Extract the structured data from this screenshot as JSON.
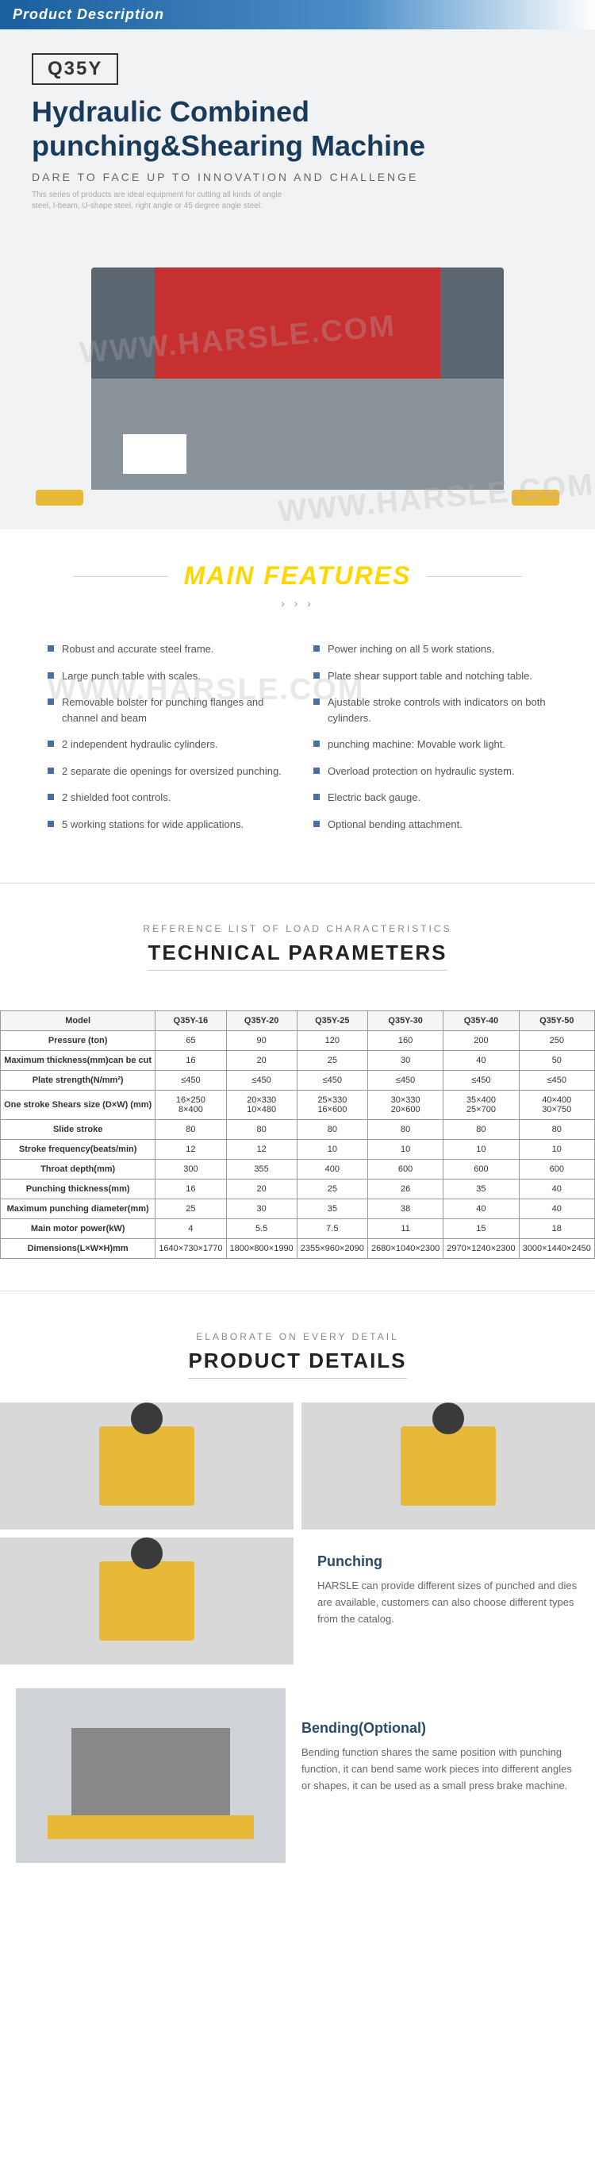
{
  "header": {
    "title": "Product Description"
  },
  "hero": {
    "model": "Q35Y",
    "title_line1": "Hydraulic Combined",
    "title_line2": "punching&Shearing Machine",
    "subtitle": "DARE TO FACE UP TO INNOVATION AND CHALLENGE",
    "desc": "This series of products are ideal equipment for cutting all kinds of angle steel, I-beam, U-shape steel, right angle or 45 degree angle steel."
  },
  "watermark": "WWW.HARSLE.COM",
  "features": {
    "title": "MAIN FEATURES",
    "arrows": "› › ›",
    "left": [
      "Robust and accurate steel frame.",
      "Large punch table with scales.",
      "Removable bolster for punching flanges and channel and beam",
      "2 independent hydraulic cylinders.",
      "2 separate die openings for oversized punching.",
      "2 shielded foot controls.",
      "5 working stations for wide applications."
    ],
    "right": [
      "Power inching on all 5 work stations.",
      "Plate shear support table and notching table.",
      "Ajustable stroke controls with indicators on both cylinders.",
      "punching machine: Movable work light.",
      "Overload protection on hydraulic system.",
      "Electric back gauge.",
      "Optional bending attachment."
    ]
  },
  "tech": {
    "sub": "REFERENCE LIST OF LOAD CHARACTERISTICS",
    "main": "TECHNICAL PARAMETERS",
    "columns": [
      "Model",
      "Q35Y-16",
      "Q35Y-20",
      "Q35Y-25",
      "Q35Y-30",
      "Q35Y-40",
      "Q35Y-50"
    ],
    "rows": [
      [
        "Pressure (ton)",
        "65",
        "90",
        "120",
        "160",
        "200",
        "250"
      ],
      [
        "Maximum thickness(mm)can be cut",
        "16",
        "20",
        "25",
        "30",
        "40",
        "50"
      ],
      [
        "Plate strength(N/mm²)",
        "≤450",
        "≤450",
        "≤450",
        "≤450",
        "≤450",
        "≤450"
      ],
      [
        "One stroke Shears size (D×W) (mm)",
        "16×250\n8×400",
        "20×330\n10×480",
        "25×330\n16×600",
        "30×330\n20×600",
        "35×400\n25×700",
        "40×400\n30×750"
      ],
      [
        "Slide stroke",
        "80",
        "80",
        "80",
        "80",
        "80",
        "80"
      ],
      [
        "Stroke frequency(beats/min)",
        "12",
        "12",
        "10",
        "10",
        "10",
        "10"
      ],
      [
        "Throat depth(mm)",
        "300",
        "355",
        "400",
        "600",
        "600",
        "600"
      ],
      [
        "Punching thickness(mm)",
        "16",
        "20",
        "25",
        "26",
        "35",
        "40"
      ],
      [
        "Maximum punching diameter(mm)",
        "25",
        "30",
        "35",
        "38",
        "40",
        "40"
      ],
      [
        "Main motor power(kW)",
        "4",
        "5.5",
        "7.5",
        "11",
        "15",
        "18"
      ],
      [
        "Dimensions(L×W×H)mm",
        "1640×730×1770",
        "1800×800×1990",
        "2355×960×2090",
        "2680×1040×2300",
        "2970×1240×2300",
        "3000×1440×2450"
      ]
    ]
  },
  "details": {
    "sub": "ELABORATE ON EVERY DETAIL",
    "main": "PRODUCT DETAILS",
    "punching": {
      "title": "Punching",
      "body": "HARSLE can provide different sizes of punched and dies are available, customers can also choose different types from the catalog."
    },
    "bending": {
      "title": "Bending(Optional)",
      "body": "Bending function shares the same position with punching function, it can bend same work pieces into different angles or shapes, it can be used as a small press brake machine."
    }
  },
  "colors": {
    "header_blue": "#1a5f9e",
    "title_navy": "#1a3a5a",
    "yellow": "#ffd700",
    "bullet_blue": "#4a6fa5",
    "machine_red": "#c73030",
    "machine_yellow": "#e8b838"
  }
}
